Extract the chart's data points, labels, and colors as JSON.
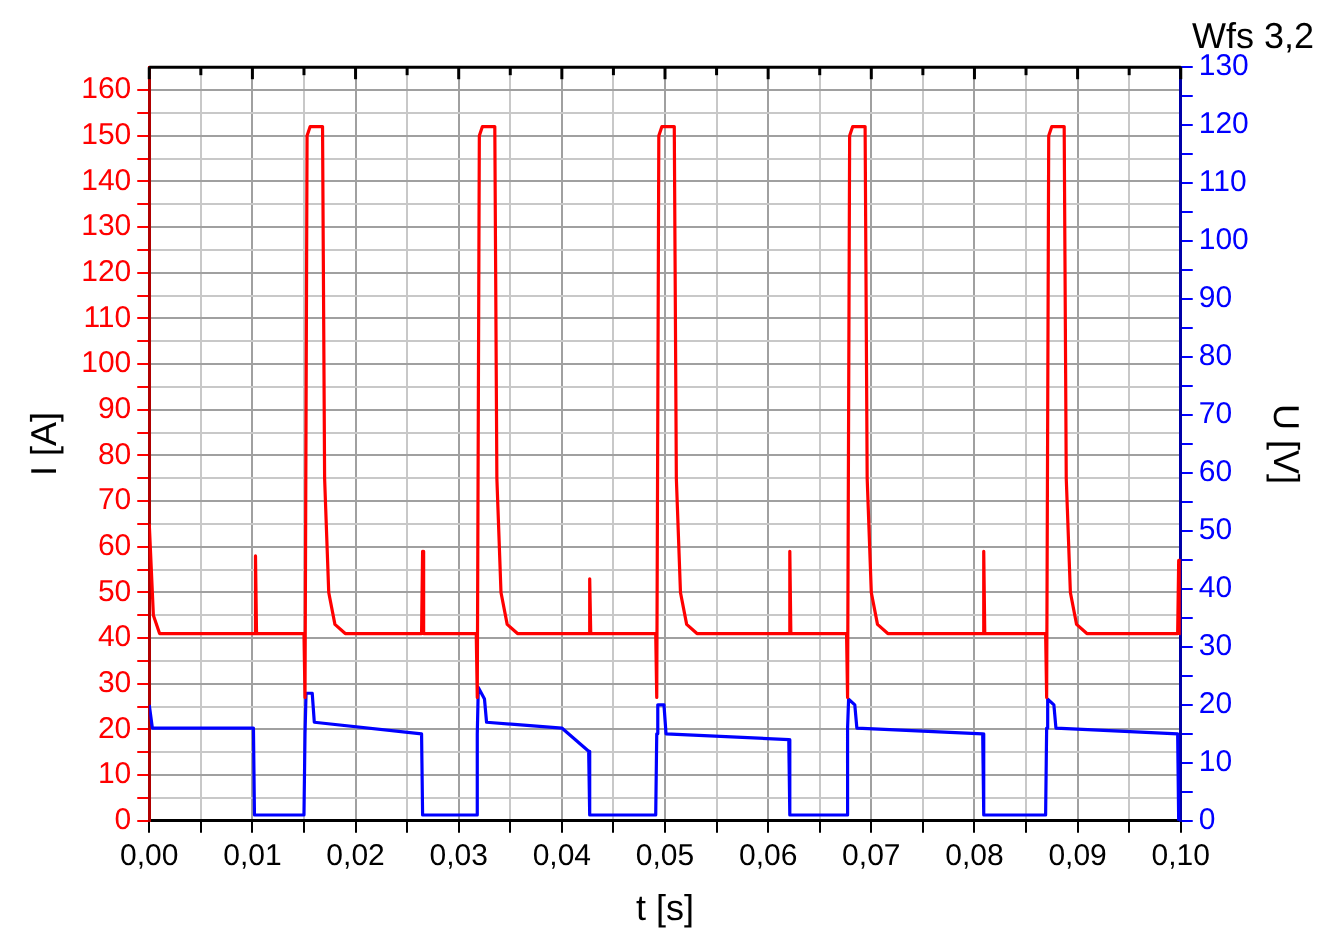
{
  "chart_data": {
    "type": "line",
    "title": "Wfs 3,2",
    "xlabel": "t [s]",
    "ylabel": "I [A]",
    "y2label": "U [V]",
    "xlim": [
      0,
      0.1
    ],
    "xticks": [
      {
        "value": 0,
        "label": "0,00"
      },
      {
        "value": 0.005,
        "label": null
      },
      {
        "value": 0.01,
        "label": "0,01"
      },
      {
        "value": 0.015,
        "label": null
      },
      {
        "value": 0.02,
        "label": "0,02"
      },
      {
        "value": 0.025,
        "label": null
      },
      {
        "value": 0.03,
        "label": "0,03"
      },
      {
        "value": 0.035,
        "label": null
      },
      {
        "value": 0.04,
        "label": "0,04"
      },
      {
        "value": 0.045,
        "label": null
      },
      {
        "value": 0.05,
        "label": "0,05"
      },
      {
        "value": 0.055,
        "label": null
      },
      {
        "value": 0.06,
        "label": "0,06"
      },
      {
        "value": 0.065,
        "label": null
      },
      {
        "value": 0.07,
        "label": "0,07"
      },
      {
        "value": 0.075,
        "label": null
      },
      {
        "value": 0.08,
        "label": "0,08"
      },
      {
        "value": 0.085,
        "label": null
      },
      {
        "value": 0.09,
        "label": "0,09"
      },
      {
        "value": 0.095,
        "label": null
      },
      {
        "value": 0.1,
        "label": "0,10"
      }
    ],
    "ylim": [
      0,
      165
    ],
    "yticks": [
      0,
      {
        "value": 5,
        "label": null
      },
      10,
      {
        "value": 15,
        "label": null
      },
      20,
      {
        "value": 25,
        "label": null
      },
      30,
      {
        "value": 35,
        "label": null
      },
      40,
      {
        "value": 45,
        "label": null
      },
      50,
      {
        "value": 55,
        "label": null
      },
      60,
      {
        "value": 65,
        "label": null
      },
      70,
      {
        "value": 75,
        "label": null
      },
      80,
      {
        "value": 85,
        "label": null
      },
      90,
      {
        "value": 95,
        "label": null
      },
      100,
      {
        "value": 105,
        "label": null
      },
      110,
      {
        "value": 115,
        "label": null
      },
      120,
      {
        "value": 125,
        "label": null
      },
      130,
      {
        "value": 135,
        "label": null
      },
      140,
      {
        "value": 145,
        "label": null
      },
      150,
      {
        "value": 155,
        "label": null
      },
      160
    ],
    "y2lim": [
      0,
      130
    ],
    "y2ticks": [
      0,
      {
        "value": 5,
        "label": null
      },
      10,
      {
        "value": 15,
        "label": null
      },
      20,
      {
        "value": 25,
        "label": null
      },
      30,
      {
        "value": 35,
        "label": null
      },
      40,
      {
        "value": 45,
        "label": null
      },
      50,
      {
        "value": 55,
        "label": null
      },
      60,
      {
        "value": 65,
        "label": null
      },
      70,
      {
        "value": 75,
        "label": null
      },
      80,
      {
        "value": 85,
        "label": null
      },
      90,
      {
        "value": 95,
        "label": null
      },
      100,
      {
        "value": 105,
        "label": null
      },
      110,
      {
        "value": 115,
        "label": null
      },
      120,
      {
        "value": 125,
        "label": null
      },
      130
    ],
    "grid": true,
    "legend": false,
    "marker": "none",
    "line_style": "solid",
    "series": [
      {
        "color": "#ff0000",
        "x": [
          0,
          0.0004,
          0.001,
          0.0102,
          0.0103,
          0.0104,
          0.015,
          0.0151,
          0.0153,
          0.0156,
          0.0168,
          0.017,
          0.0174,
          0.018,
          0.019,
          0.0264,
          0.0265,
          0.0266,
          0.0317,
          0.0318,
          0.032,
          0.0323,
          0.0335,
          0.0337,
          0.0341,
          0.0347,
          0.0357,
          0.0426,
          0.0427,
          0.0428,
          0.0491,
          0.0492,
          0.0494,
          0.0497,
          0.0509,
          0.0511,
          0.0515,
          0.0521,
          0.0531,
          0.062,
          0.0621,
          0.0622,
          0.0676,
          0.0677,
          0.0679,
          0.0682,
          0.0694,
          0.0696,
          0.07,
          0.0706,
          0.0716,
          0.0808,
          0.0809,
          0.081,
          0.0869,
          0.087,
          0.0872,
          0.0875,
          0.0887,
          0.0889,
          0.0893,
          0.0899,
          0.0909,
          0.0997,
          0.0998,
          0.0999,
          0.1
        ],
        "values": [
          65,
          45,
          41,
          41,
          58,
          41,
          41,
          27,
          150,
          152,
          152,
          75,
          50,
          43,
          41,
          41,
          59,
          41,
          41,
          27,
          150,
          152,
          152,
          75,
          50,
          43,
          41,
          41,
          53,
          41,
          41,
          27,
          150,
          152,
          152,
          75,
          50,
          43,
          41,
          41,
          59,
          41,
          41,
          27,
          150,
          152,
          152,
          75,
          50,
          43,
          41,
          41,
          59,
          41,
          41,
          27,
          150,
          152,
          152,
          75,
          50,
          43,
          41,
          41,
          57,
          41,
          41
        ]
      },
      {
        "color": "#0000ff",
        "axis": "y2",
        "x": [
          0,
          0.0003,
          0.0101,
          0.0102,
          0.015,
          0.0151,
          0.0152,
          0.0158,
          0.016,
          0.0264,
          0.0265,
          0.0317,
          0.0318,
          0.0319,
          0.0325,
          0.0327,
          0.04,
          0.0426,
          0.0427,
          0.0491,
          0.0492,
          0.0493,
          0.0499,
          0.0501,
          0.062,
          0.0621,
          0.0676,
          0.0677,
          0.0678,
          0.0684,
          0.0686,
          0.0808,
          0.0809,
          0.0869,
          0.087,
          0.0871,
          0.0877,
          0.0879,
          0.0997,
          0.0998,
          0.1
        ],
        "values": [
          20,
          16,
          16,
          1,
          1,
          15,
          22,
          22,
          17,
          15,
          1,
          1,
          15,
          23,
          21,
          17,
          16,
          12,
          1,
          1,
          15,
          20,
          20,
          15,
          14,
          1,
          1,
          16,
          21,
          20,
          16,
          15,
          1,
          1,
          16,
          21,
          20,
          16,
          15,
          0,
          0
        ]
      }
    ]
  }
}
